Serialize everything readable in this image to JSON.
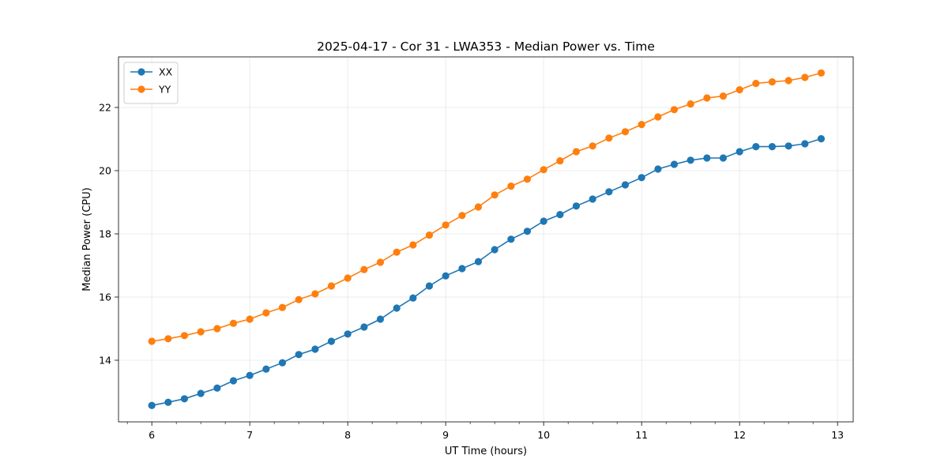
{
  "chart_data": {
    "type": "line",
    "title": "2025-04-17 - Cor 31 - LWA353 - Median Power vs. Time",
    "xlabel": "UT Time (hours)",
    "ylabel": "Median Power (CPU)",
    "xlim": [
      5.66,
      13.16
    ],
    "ylim": [
      12.05,
      23.6
    ],
    "xticks": [
      "6",
      "7",
      "8",
      "9",
      "10",
      "11",
      "12",
      "13"
    ],
    "yticks": [
      "14",
      "16",
      "18",
      "20",
      "22"
    ],
    "grid": true,
    "legend_position": "top-left",
    "x": [
      6.0,
      6.167,
      6.333,
      6.5,
      6.667,
      6.833,
      7.0,
      7.167,
      7.333,
      7.5,
      7.667,
      7.833,
      8.0,
      8.167,
      8.333,
      8.5,
      8.667,
      8.833,
      9.0,
      9.167,
      9.333,
      9.5,
      9.667,
      9.833,
      10.0,
      10.167,
      10.333,
      10.5,
      10.667,
      10.833,
      11.0,
      11.167,
      11.333,
      11.5,
      11.667,
      11.833,
      12.0,
      12.167,
      12.333,
      12.5,
      12.667,
      12.833
    ],
    "series": [
      {
        "name": "XX",
        "color": "#1f77b4",
        "values": [
          12.57,
          12.67,
          12.78,
          12.95,
          13.12,
          13.35,
          13.52,
          13.72,
          13.92,
          14.18,
          14.35,
          14.6,
          14.83,
          15.05,
          15.3,
          15.65,
          15.97,
          16.35,
          16.67,
          16.9,
          17.12,
          17.5,
          17.83,
          18.08,
          18.4,
          18.61,
          18.88,
          19.1,
          19.33,
          19.55,
          19.78,
          20.05,
          20.2,
          20.33,
          20.4,
          20.4,
          20.6,
          20.76,
          20.76,
          20.78,
          20.85,
          21.01
        ]
      },
      {
        "name": "YY",
        "color": "#ff7f0e",
        "values": [
          14.6,
          14.68,
          14.78,
          14.9,
          15.0,
          15.17,
          15.3,
          15.5,
          15.67,
          15.92,
          16.1,
          16.35,
          16.6,
          16.87,
          17.1,
          17.42,
          17.65,
          17.96,
          18.28,
          18.58,
          18.85,
          19.23,
          19.51,
          19.73,
          20.03,
          20.31,
          20.6,
          20.78,
          21.03,
          21.23,
          21.46,
          21.7,
          21.93,
          22.11,
          22.3,
          22.36,
          22.56,
          22.76,
          22.81,
          22.85,
          22.95,
          23.09
        ]
      }
    ]
  }
}
